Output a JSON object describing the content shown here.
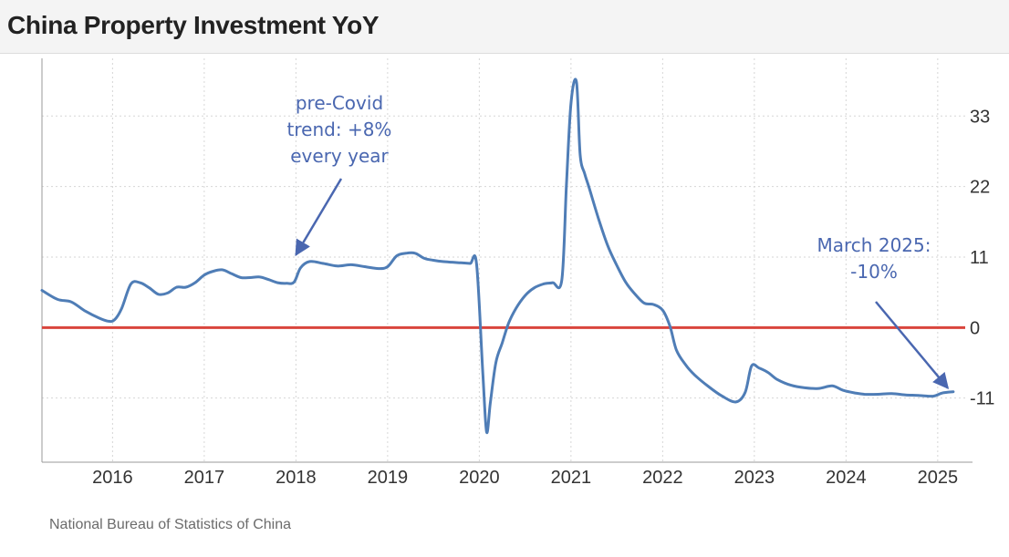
{
  "header": {
    "title": "China Property Investment YoY"
  },
  "source": "National Bureau of Statistics of China",
  "colors": {
    "line": "#4f7db6",
    "zero_line": "#d9453d",
    "annotation": "#4a67b0",
    "grid": "#d6d6d6"
  },
  "chart_data": {
    "type": "line",
    "title": "China Property Investment YoY",
    "xlabel": "",
    "ylabel": "",
    "xlim": [
      2015.23,
      2025.3
    ],
    "ylim": [
      -21,
      42
    ],
    "x_ticks": [
      2016,
      2017,
      2018,
      2019,
      2020,
      2021,
      2022,
      2023,
      2024,
      2025
    ],
    "x_tick_labels": [
      "2016",
      "2017",
      "2018",
      "2019",
      "2020",
      "2021",
      "2022",
      "2023",
      "2024",
      "2025"
    ],
    "y_ticks": [
      33,
      22,
      11,
      0,
      -11
    ],
    "y_tick_labels": [
      "33",
      "22",
      "11",
      "0",
      "-11"
    ],
    "grid": true,
    "reference_line": {
      "y": 0
    },
    "series": [
      {
        "name": "China Property Investment YoY",
        "x": [
          2015.23,
          2015.4,
          2015.55,
          2015.7,
          2015.85,
          2015.95,
          2016.02,
          2016.1,
          2016.2,
          2016.3,
          2016.4,
          2016.5,
          2016.6,
          2016.7,
          2016.8,
          2016.9,
          2017.0,
          2017.1,
          2017.2,
          2017.3,
          2017.4,
          2017.5,
          2017.6,
          2017.7,
          2017.8,
          2017.9,
          2017.98,
          2018.05,
          2018.15,
          2018.3,
          2018.45,
          2018.6,
          2018.75,
          2018.9,
          2019.0,
          2019.1,
          2019.2,
          2019.3,
          2019.4,
          2019.5,
          2019.6,
          2019.7,
          2019.8,
          2019.9,
          2019.97,
          2020.04,
          2020.08,
          2020.12,
          2020.18,
          2020.25,
          2020.32,
          2020.4,
          2020.5,
          2020.6,
          2020.7,
          2020.8,
          2020.9,
          2020.95,
          2021.0,
          2021.06,
          2021.1,
          2021.15,
          2021.2,
          2021.3,
          2021.4,
          2021.5,
          2021.6,
          2021.7,
          2021.8,
          2021.9,
          2022.0,
          2022.08,
          2022.15,
          2022.25,
          2022.35,
          2022.5,
          2022.65,
          2022.8,
          2022.9,
          2022.97,
          2023.05,
          2023.15,
          2023.25,
          2023.4,
          2023.55,
          2023.7,
          2023.85,
          2023.97,
          2024.1,
          2024.2,
          2024.35,
          2024.5,
          2024.65,
          2024.8,
          2024.95,
          2025.05,
          2025.17
        ],
        "values": [
          5.8,
          4.4,
          4.0,
          2.6,
          1.5,
          1.0,
          1.2,
          3.0,
          6.8,
          7.0,
          6.2,
          5.2,
          5.4,
          6.3,
          6.3,
          7.0,
          8.2,
          8.8,
          9.0,
          8.4,
          7.8,
          7.8,
          7.9,
          7.5,
          7.0,
          6.9,
          7.1,
          9.3,
          10.3,
          10.0,
          9.6,
          9.8,
          9.5,
          9.2,
          9.5,
          11.2,
          11.6,
          11.6,
          10.8,
          10.5,
          10.3,
          10.2,
          10.1,
          10.0,
          9.9,
          -7.5,
          -16.3,
          -11.8,
          -5.5,
          -2.4,
          0.7,
          3.0,
          5.0,
          6.2,
          6.8,
          7.0,
          7.4,
          22.0,
          35.0,
          38.3,
          27.0,
          24.0,
          21.7,
          17.0,
          12.8,
          9.7,
          7.0,
          5.2,
          3.8,
          3.6,
          2.7,
          0.2,
          -3.5,
          -5.8,
          -7.4,
          -9.2,
          -10.7,
          -11.6,
          -10.1,
          -6.0,
          -6.3,
          -7.0,
          -8.1,
          -9.0,
          -9.4,
          -9.5,
          -9.1,
          -9.8,
          -10.2,
          -10.4,
          -10.4,
          -10.3,
          -10.5,
          -10.6,
          -10.7,
          -10.2,
          -10.0
        ]
      }
    ],
    "annotations": [
      {
        "lines": [
          "pre-Covid",
          "trend: +8%",
          "every year"
        ],
        "arrow_to": {
          "x": 2018.0,
          "y": 10.5
        }
      },
      {
        "lines": [
          "March 2025:",
          "-10%"
        ],
        "arrow_to": {
          "x": 2025.17,
          "y": -10.0
        }
      }
    ]
  }
}
